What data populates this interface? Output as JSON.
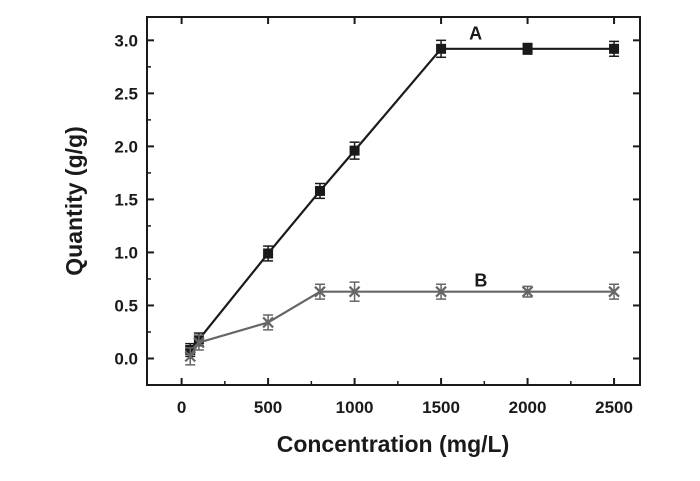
{
  "chart_data": {
    "type": "line",
    "xlabel": "Concentration (mg/L)",
    "ylabel": "Quantity (g/g)",
    "xlim": [
      -200,
      2650
    ],
    "ylim": [
      -0.25,
      3.22
    ],
    "x_ticks": [
      0,
      500,
      1000,
      1500,
      2000,
      2500
    ],
    "y_ticks": [
      0.0,
      0.5,
      1.0,
      1.5,
      2.0,
      2.5,
      3.0
    ],
    "x_tick_labels": [
      "0",
      "500",
      "1000",
      "1500",
      "2000",
      "2500"
    ],
    "y_tick_labels": [
      "0.0",
      "0.5",
      "1.0",
      "1.5",
      "2.0",
      "2.5",
      "3.0"
    ],
    "grid": false,
    "legend": "none",
    "series": [
      {
        "name": "A",
        "marker": "square",
        "color": "#1a1a1a",
        "x": [
          50,
          100,
          500,
          800,
          1000,
          1500,
          2000,
          2500
        ],
        "y": [
          0.08,
          0.18,
          0.99,
          1.58,
          1.96,
          2.92,
          2.92,
          2.92
        ],
        "error": [
          0.06,
          0.06,
          0.07,
          0.07,
          0.08,
          0.08,
          0.05,
          0.07
        ]
      },
      {
        "name": "B",
        "marker": "cross",
        "color": "#666666",
        "x": [
          50,
          100,
          500,
          800,
          1000,
          1500,
          2000,
          2500
        ],
        "y": [
          0.02,
          0.15,
          0.34,
          0.63,
          0.63,
          0.63,
          0.63,
          0.63
        ],
        "error": [
          0.08,
          0.07,
          0.07,
          0.07,
          0.09,
          0.07,
          0.05,
          0.07
        ]
      }
    ]
  }
}
